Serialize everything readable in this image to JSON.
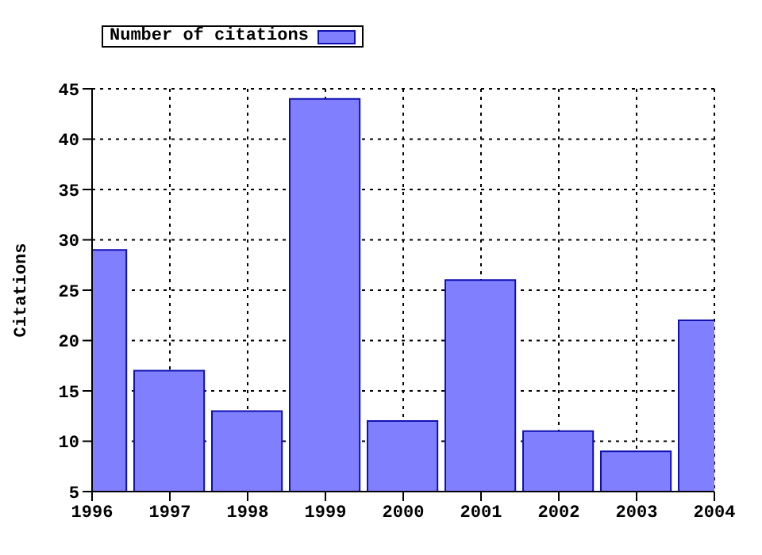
{
  "chart_data": {
    "type": "bar",
    "ylabel": "Citations",
    "x": [
      1996,
      1997,
      1998,
      1999,
      2000,
      2001,
      2002,
      2003,
      2004
    ],
    "series": [
      {
        "name": "Number of citations",
        "color": "#8080ff",
        "values": [
          29,
          17,
          13,
          44,
          12,
          26,
          11,
          9,
          22
        ]
      }
    ],
    "xlim": [
      1996,
      2004
    ],
    "xticks": [
      1996,
      1997,
      1998,
      1999,
      2000,
      2001,
      2002,
      2003,
      2004
    ],
    "ylim": [
      5,
      45
    ],
    "yticks": [
      5,
      10,
      15,
      20,
      25,
      30,
      35,
      40,
      45
    ],
    "grid": true,
    "legend": "top left"
  }
}
